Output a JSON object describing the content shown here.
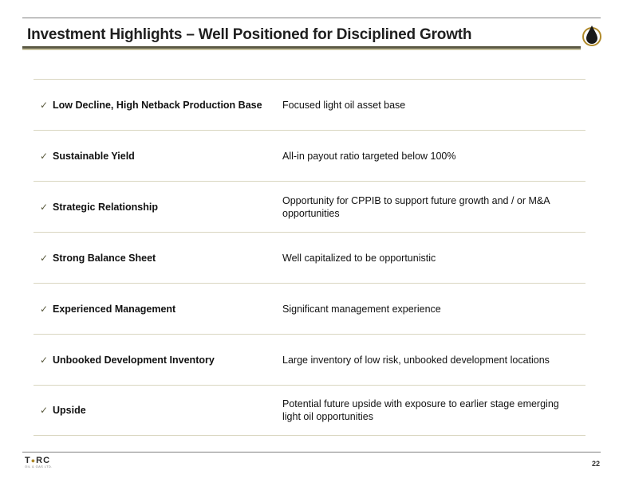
{
  "header": {
    "title": "Investment Highlights – Well Positioned for Disciplined Growth"
  },
  "highlights": [
    {
      "label": "Low Decline, High Netback Production Base",
      "description": "Focused light oil asset base"
    },
    {
      "label": "Sustainable Yield",
      "description": "All-in payout ratio targeted below 100%"
    },
    {
      "label": "Strategic Relationship",
      "description": "Opportunity for CPPIB to support future growth and / or M&A opportunities"
    },
    {
      "label": "Strong Balance Sheet",
      "description": "Well capitalized to be opportunistic"
    },
    {
      "label": "Experienced Management",
      "description": "Significant management experience"
    },
    {
      "label": "Unbooked Development Inventory",
      "description": "Large inventory of low risk, unbooked development locations"
    },
    {
      "label": "Upside",
      "description": "Potential future upside with exposure to earlier stage emerging light oil opportunities"
    }
  ],
  "footer": {
    "brand_left": "T",
    "brand_right": "RC",
    "tagline": "OIL & GAS LTD.",
    "page_number": "22"
  },
  "colors": {
    "title_rule": "#5c5a45",
    "row_rule": "#d9d6c0",
    "logo_drop": "#b08a2a"
  },
  "icons": {
    "check": "check-icon",
    "logo": "oil-drop-logo-icon"
  }
}
